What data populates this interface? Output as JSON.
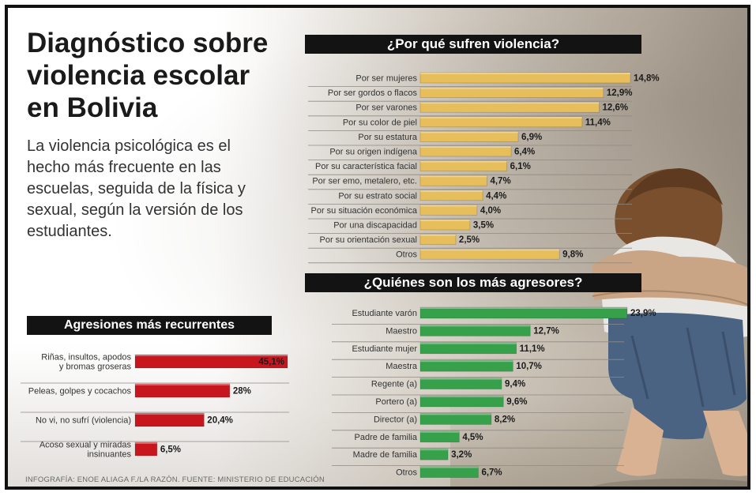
{
  "title": "Diagnóstico sobre violencia escolar en Bolivia",
  "intro": "La violencia psicológica es el hecho más frecuente en las escuelas, seguida de la física y sexual, según la versión de los estudiantes.",
  "credit": "INFOGRAFÍA: ENOE ALIAGA F./LA RAZÓN. FUENTE: MINISTERIO DE EDUCACIÓN",
  "colors": {
    "why_bar": "#e6be5c",
    "who_bar": "#37a04a",
    "agr_bar": "#c8161e",
    "header": "#131313"
  },
  "chart_data": [
    {
      "type": "bar",
      "orientation": "horizontal",
      "title": "¿Por qué sufren violencia?",
      "categories": [
        "Por ser mujeres",
        "Por ser gordos o flacos",
        "Por ser varones",
        "Por su color de piel",
        "Por su estatura",
        "Por su origen indígena",
        "Por su característica facial",
        "Por ser emo, metalero, etc.",
        "Por su estrato social",
        "Por su situación económica",
        "Por una discapacidad",
        "Por su orientación sexual",
        "Otros"
      ],
      "values": [
        14.8,
        12.9,
        12.6,
        11.4,
        6.9,
        6.4,
        6.1,
        4.7,
        4.4,
        4.0,
        3.5,
        2.5,
        9.8
      ],
      "labels": [
        "14,8%",
        "12,9%",
        "12,6%",
        "11,4%",
        "6,9%",
        "6,4%",
        "6,1%",
        "4,7%",
        "4,4%",
        "4,0%",
        "3,5%",
        "2,5%",
        "9,8%"
      ]
    },
    {
      "type": "bar",
      "orientation": "horizontal",
      "title": "¿Quiénes son los más agresores?",
      "categories": [
        "Estudiante varón",
        "Maestro",
        "Estudiante mujer",
        "Maestra",
        "Regente (a)",
        "Portero (a)",
        "Director (a)",
        "Padre de familia",
        "Madre de familia",
        "Otros"
      ],
      "values": [
        23.9,
        12.7,
        11.1,
        10.7,
        9.4,
        9.6,
        8.2,
        4.5,
        3.2,
        6.7
      ],
      "labels": [
        "23,9%",
        "12,7%",
        "11,1%",
        "10,7%",
        "9,4%",
        "9,6%",
        "8,2%",
        "4,5%",
        "3,2%",
        "6,7%"
      ]
    },
    {
      "type": "bar",
      "orientation": "horizontal",
      "title": "Agresiones más recurrentes",
      "categories": [
        [
          "Riñas, insultos, apodos",
          "y bromas groseras"
        ],
        [
          "Peleas, golpes y cocachos"
        ],
        [
          "No vi, no sufrí (violencia)"
        ],
        [
          "Acoso sexual y miradas",
          "insinuantes"
        ]
      ],
      "values": [
        45.1,
        28,
        20.4,
        6.5
      ],
      "labels": [
        "45,1%",
        "28%",
        "20,4%",
        "6,5%"
      ]
    }
  ]
}
